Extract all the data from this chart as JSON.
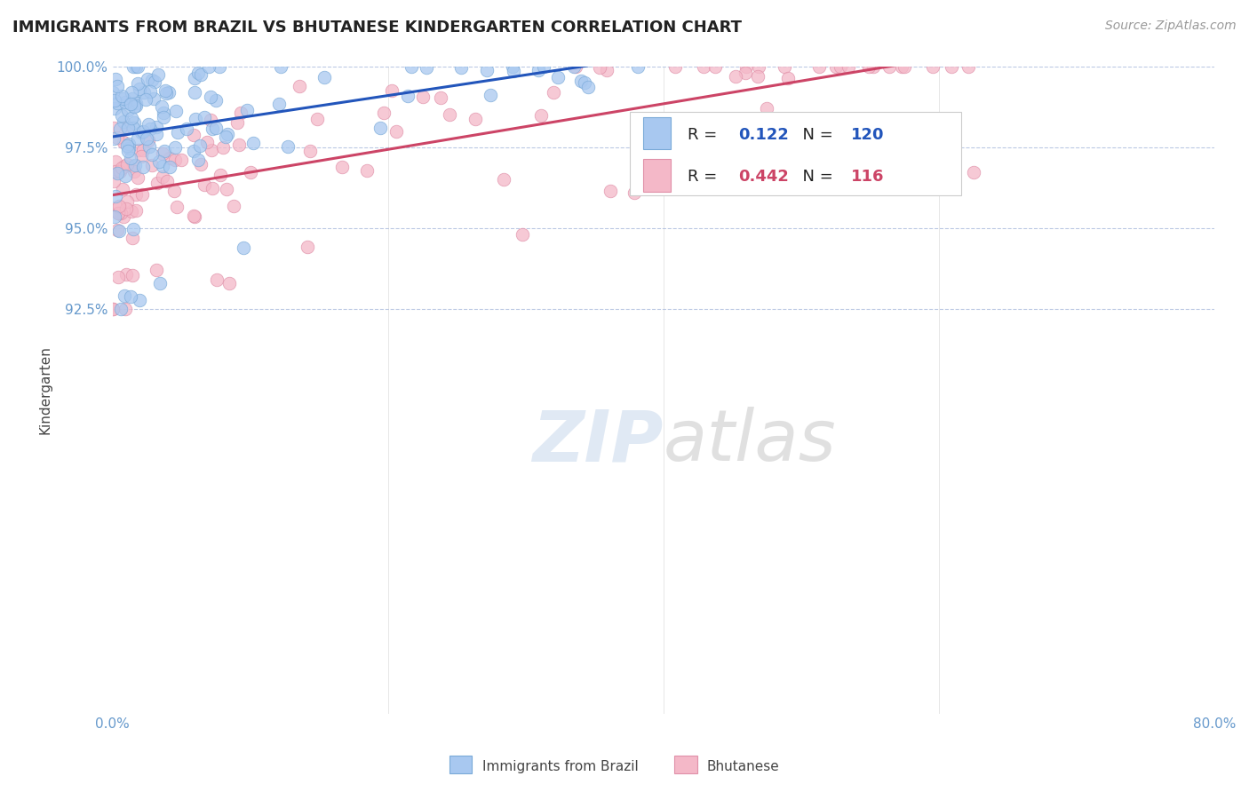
{
  "title": "IMMIGRANTS FROM BRAZIL VS BHUTANESE KINDERGARTEN CORRELATION CHART",
  "source_text": "Source: ZipAtlas.com",
  "ylabel": "Kindergarten",
  "x_min": 0.0,
  "x_max": 80.0,
  "y_min": 80.0,
  "y_max": 100.0,
  "brazil_color": "#a8c8f0",
  "brazil_edge_color": "#7aaad8",
  "bhutan_color": "#f4b8c8",
  "bhutan_edge_color": "#e090a8",
  "brazil_R": 0.122,
  "brazil_N": 120,
  "bhutan_R": 0.442,
  "bhutan_N": 116,
  "legend_brazil_label": "Immigrants from Brazil",
  "legend_bhutan_label": "Bhutanese",
  "watermark_zip": "ZIP",
  "watermark_atlas": "atlas",
  "brazil_line_color": "#2255bb",
  "bhutan_line_color": "#cc4466",
  "brazil_dash_color": "#88aadd",
  "bhutan_dash_color": "#ee99aa",
  "grid_color": "#aabbdd",
  "tick_color": "#6699cc",
  "background_color": "#ffffff",
  "title_fontsize": 13,
  "source_fontsize": 10,
  "tick_fontsize": 11,
  "ylabel_fontsize": 11
}
